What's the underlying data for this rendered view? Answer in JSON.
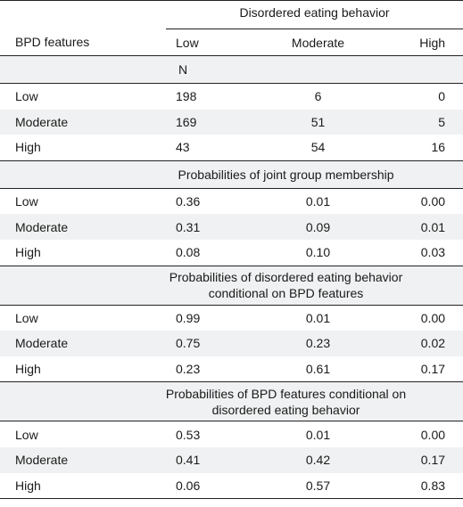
{
  "header": {
    "spanner": "Disordered eating behavior",
    "row_header": "BPD features",
    "columns": [
      "Low",
      "Moderate",
      "High"
    ]
  },
  "sections": [
    {
      "title": "N",
      "rows": [
        {
          "label": "Low",
          "values": [
            "198",
            "6",
            "0"
          ]
        },
        {
          "label": "Moderate",
          "values": [
            "169",
            "51",
            "5"
          ]
        },
        {
          "label": "High",
          "values": [
            "43",
            "54",
            "16"
          ]
        }
      ]
    },
    {
      "title": "Probabilities of joint group membership",
      "rows": [
        {
          "label": "Low",
          "values": [
            "0.36",
            "0.01",
            "0.00"
          ]
        },
        {
          "label": "Moderate",
          "values": [
            "0.31",
            "0.09",
            "0.01"
          ]
        },
        {
          "label": "High",
          "values": [
            "0.08",
            "0.10",
            "0.03"
          ]
        }
      ]
    },
    {
      "title_line1": "Probabilities of disordered eating behavior",
      "title_line2": "conditional on BPD features",
      "rows": [
        {
          "label": "Low",
          "values": [
            "0.99",
            "0.01",
            "0.00"
          ]
        },
        {
          "label": "Moderate",
          "values": [
            "0.75",
            "0.23",
            "0.02"
          ]
        },
        {
          "label": "High",
          "values": [
            "0.23",
            "0.61",
            "0.17"
          ]
        }
      ]
    },
    {
      "title_line1": "Probabilities of BPD features conditional on",
      "title_line2": "disordered eating behavior",
      "rows": [
        {
          "label": "Low",
          "values": [
            "0.53",
            "0.01",
            "0.00"
          ]
        },
        {
          "label": "Moderate",
          "values": [
            "0.41",
            "0.42",
            "0.17"
          ]
        },
        {
          "label": "High",
          "values": [
            "0.06",
            "0.57",
            "0.83"
          ]
        }
      ]
    }
  ]
}
